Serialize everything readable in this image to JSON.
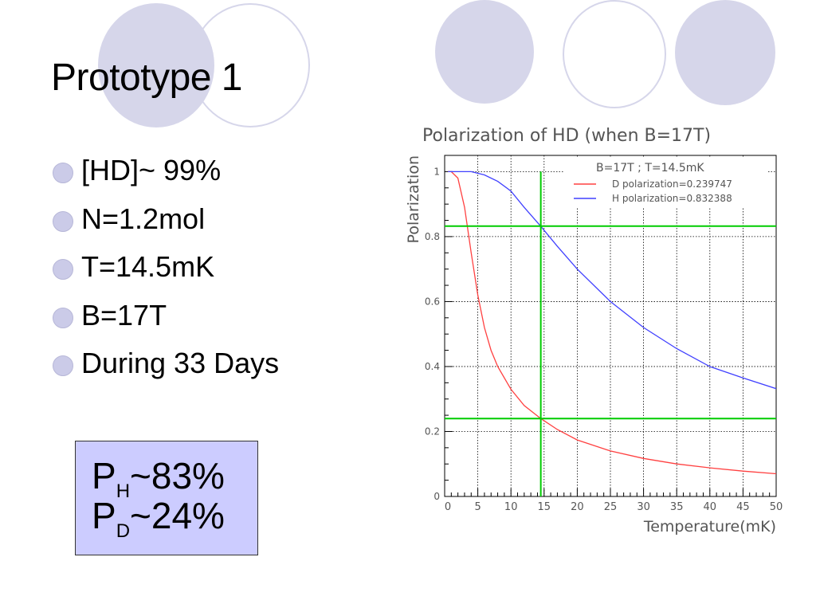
{
  "slide": {
    "title": "Prototype 1",
    "bullets": [
      {
        "label": "[HD]~ 99%"
      },
      {
        "label": "N=1.2mol"
      },
      {
        "label": "T=14.5mK"
      },
      {
        "label": "B=17T"
      },
      {
        "label": "During 33 Days"
      }
    ],
    "result": {
      "ph_base": "P",
      "ph_sub": "H",
      "ph_value": "~83%",
      "pd_base": "P",
      "pd_sub": "D",
      "pd_value": "~24%"
    }
  },
  "colors": {
    "circle_fill": "#d6d6ea",
    "bullet": "#cbcbe8",
    "box_fill": "#ccccff",
    "d_curve": "#ff4040",
    "h_curve": "#4040ff",
    "guide_lines": "#00cc00"
  },
  "chart_data": {
    "type": "line",
    "title": "Polarization of HD   (when B=17T)",
    "xlabel": "Temperature(mK)",
    "ylabel": "Polarization",
    "xlim": [
      0,
      50
    ],
    "ylim": [
      0,
      1.05
    ],
    "xticks": [
      0,
      5,
      10,
      15,
      20,
      25,
      30,
      35,
      40,
      45,
      50
    ],
    "yticks": [
      0,
      0.2,
      0.4,
      0.6,
      0.8,
      1
    ],
    "grid": true,
    "legend_header": "B=17T ; T=14.5mK",
    "legend_position": "top-right",
    "series": [
      {
        "name": "D polarization=0.239747",
        "color": "#ff4040",
        "x": [
          0.5,
          1,
          2,
          3,
          4,
          5,
          6,
          7,
          8,
          10,
          12,
          14.5,
          17,
          20,
          25,
          30,
          35,
          40,
          45,
          50
        ],
        "values": [
          1.0,
          1.0,
          0.98,
          0.89,
          0.75,
          0.62,
          0.52,
          0.45,
          0.4,
          0.33,
          0.28,
          0.24,
          0.206,
          0.174,
          0.14,
          0.117,
          0.1,
          0.088,
          0.078,
          0.07
        ]
      },
      {
        "name": "H polarization=0.832388",
        "color": "#4040ff",
        "x": [
          0.5,
          2,
          4,
          6,
          8,
          10,
          12,
          14.5,
          17,
          20,
          25,
          30,
          35,
          40,
          45,
          50
        ],
        "values": [
          1.0,
          1.0,
          1.0,
          0.99,
          0.97,
          0.94,
          0.89,
          0.832,
          0.77,
          0.7,
          0.6,
          0.52,
          0.455,
          0.4,
          0.365,
          0.332
        ]
      }
    ],
    "reference_lines": {
      "vertical_x": [
        14.5
      ],
      "horizontal_y": [
        0.832388,
        0.239747
      ]
    }
  }
}
